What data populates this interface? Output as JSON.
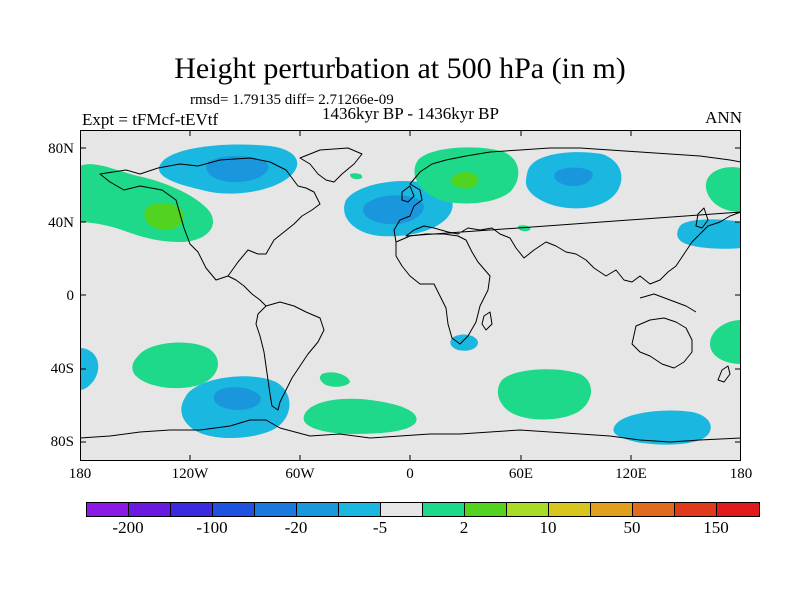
{
  "title": "Height perturbation at 500 hPa (in m)",
  "stats": "rmsd= 1.79135 diff= 2.71266e-09",
  "experiment": "Expt = tFMcf-tEVtf",
  "period": "1436kyr BP - 1436kyr BP",
  "season": "ANN",
  "lat_labels": [
    "80N",
    "40N",
    "0",
    "40S",
    "80S"
  ],
  "lon_labels": [
    "180",
    "120W",
    "60W",
    "0",
    "60E",
    "120E",
    "180"
  ],
  "colors": {
    "background": "#e6e6e6",
    "coastline": "#000000",
    "positive_small": "#1ed98a",
    "positive_medium": "#52d320",
    "negative_small": "#1ab8e0",
    "negative_medium": "#1a96dd"
  },
  "colorbar": {
    "colors": [
      "#8b1ae6",
      "#6a1ae0",
      "#3b2be0",
      "#1e52e0",
      "#1a78de",
      "#1a98dd",
      "#1ab8e0",
      "#e6e6e6",
      "#1ed98a",
      "#52d320",
      "#a8dc25",
      "#d8c61e",
      "#e0a01e",
      "#e06a1e",
      "#e03a1a",
      "#e01a1a"
    ],
    "labels": [
      "-200",
      "-100",
      "-20",
      "-5",
      "2",
      "10",
      "50",
      "150"
    ]
  }
}
